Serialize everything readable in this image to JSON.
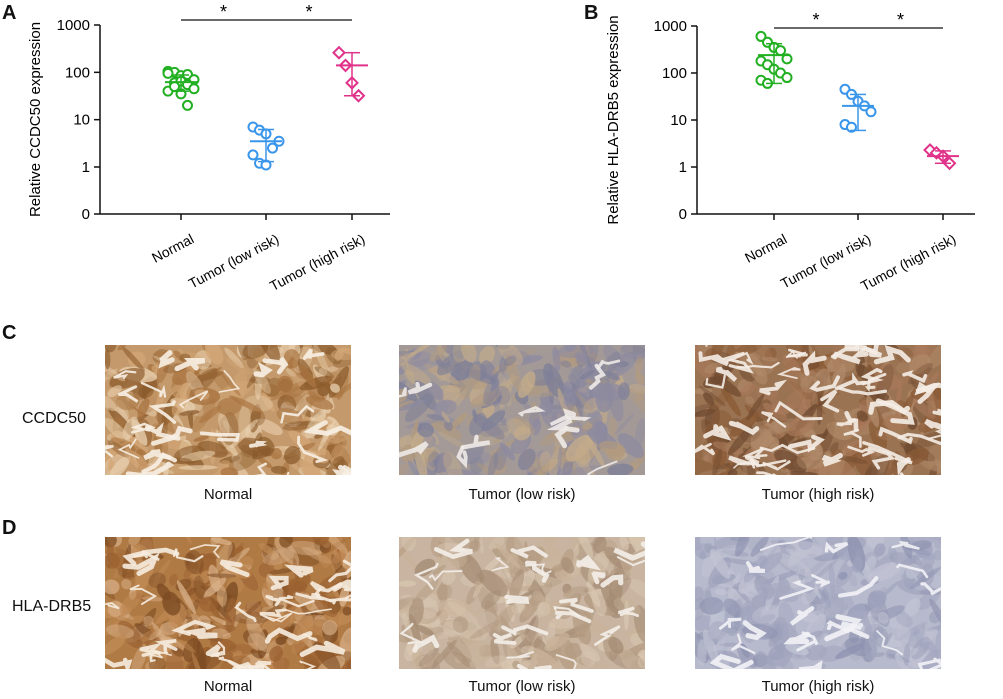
{
  "panels": {
    "A": "A",
    "B": "B",
    "C": "C",
    "D": "D"
  },
  "rows": {
    "c_label": "CCDC50",
    "d_label": "HLA-DRB5"
  },
  "captions": {
    "c": [
      "Normal",
      "Tumor (low risk)",
      "Tumor (high risk)"
    ],
    "d": [
      "Normal",
      "Tumor (low risk)",
      "Tumor (high risk)"
    ]
  },
  "colors": {
    "normal": "#22b022",
    "low": "#3a96ea",
    "high": "#e0328a",
    "brown_dark": "#8a5a2b",
    "brown_light": "#c49a6c",
    "blue_stroma": "#9ea3bd"
  },
  "chart_data": [
    {
      "type": "scatter",
      "title": "",
      "xlabel": "",
      "ylabel": "Relative CCDC50 expression",
      "yscale": "log",
      "ylim": [
        0,
        1000
      ],
      "yticks": [
        "0",
        "1",
        "10",
        "100",
        "1000"
      ],
      "categories": [
        "Normal",
        "Tumor (low risk)",
        "Tumor (high risk)"
      ],
      "points": [
        [
          105,
          100,
          85,
          90,
          70,
          95,
          60,
          65,
          55,
          45,
          40,
          50,
          35,
          20
        ],
        [
          7,
          6,
          5,
          2.5,
          3.5,
          1.8,
          1.2,
          1.1
        ],
        [
          260,
          140,
          60,
          32
        ]
      ],
      "mean": [
        62,
        3.5,
        140
      ],
      "sd_low": [
        40,
        1.3,
        32
      ],
      "sd_high": [
        88,
        6.2,
        260
      ],
      "significance": [
        {
          "from": "Normal",
          "to": "Tumor (low risk)",
          "label": "*"
        },
        {
          "from": "Tumor (low risk)",
          "to": "Tumor (high risk)",
          "label": "*"
        }
      ]
    },
    {
      "type": "scatter",
      "title": "",
      "xlabel": "",
      "ylabel": "Relative HLA-DRB5 expression",
      "yscale": "log",
      "ylim": [
        0,
        1000
      ],
      "yticks": [
        "0",
        "1",
        "10",
        "100",
        "1000"
      ],
      "categories": [
        "Normal",
        "Tumor (low risk)",
        "Tumor (high risk)"
      ],
      "points": [
        [
          600,
          450,
          350,
          300,
          200,
          180,
          150,
          120,
          100,
          80,
          70,
          60
        ],
        [
          45,
          35,
          25,
          20,
          15,
          8,
          7
        ],
        [
          2.3,
          2.0,
          1.7,
          1.2
        ]
      ],
      "mean": [
        240,
        20,
        1.7
      ],
      "sd_low": [
        60,
        6,
        1.2
      ],
      "sd_high": [
        420,
        35,
        2.2
      ],
      "significance": [
        {
          "from": "Normal",
          "to": "Tumor (low risk)",
          "label": "*"
        },
        {
          "from": "Tumor (low risk)",
          "to": "Tumor (high risk)",
          "label": "*"
        }
      ]
    }
  ]
}
